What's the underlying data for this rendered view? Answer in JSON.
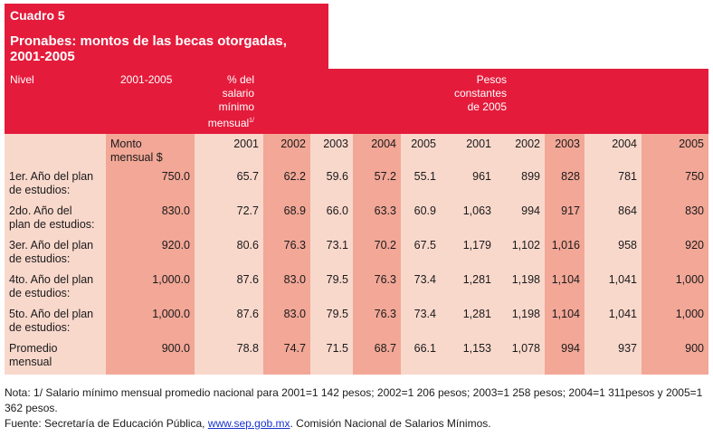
{
  "title": {
    "cuadro": "Cuadro 5",
    "heading": "Pronabes: montos de las becas otorgadas,\n2001-2005"
  },
  "header": {
    "nivel": "Nivel",
    "period": "2001-2005",
    "pct": "% del\nsalario\nmínimo\nmensual",
    "pct_note": "1/",
    "pesos": "Pesos\nconstantes\nde 2005"
  },
  "subheader": {
    "monto": "Monto\nmensual $",
    "years_pct": [
      "2001",
      "2002",
      "2003",
      "2004",
      "2005"
    ],
    "years_pesos": [
      "2001",
      "2002",
      "2003",
      "2004",
      "2005"
    ]
  },
  "rows": [
    {
      "label": "1er. Año del plan\nde estudios:",
      "monto": "750.0",
      "pct": [
        "65.7",
        "62.2",
        "59.6",
        "57.2",
        "55.1"
      ],
      "pesos": [
        "961",
        "899",
        "828",
        "781",
        "750"
      ]
    },
    {
      "label": "2do. Año del\nplan de estudios:",
      "monto": "830.0",
      "pct": [
        "72.7",
        "68.9",
        "66.0",
        "63.3",
        "60.9"
      ],
      "pesos": [
        "1,063",
        "994",
        "917",
        "864",
        "830"
      ]
    },
    {
      "label": "3er. Año del plan\nde estudios:",
      "monto": "920.0",
      "pct": [
        "80.6",
        "76.3",
        "73.1",
        "70.2",
        "67.5"
      ],
      "pesos": [
        "1,179",
        "1,102",
        "1,016",
        "958",
        "920"
      ]
    },
    {
      "label": "4to. Año del plan\nde estudios:",
      "monto": "1,000.0",
      "pct": [
        "87.6",
        "83.0",
        "79.5",
        "76.3",
        "73.4"
      ],
      "pesos": [
        "1,281",
        "1,198",
        "1,104",
        "1,041",
        "1,000"
      ]
    },
    {
      "label": "5to. Año del plan\nde estudios:",
      "monto": "1,000.0",
      "pct": [
        "87.6",
        "83.0",
        "79.5",
        "76.3",
        "73.4"
      ],
      "pesos": [
        "1,281",
        "1,198",
        "1,104",
        "1,041",
        "1,000"
      ]
    },
    {
      "label": "Promedio\nmensual",
      "monto": "900.0",
      "pct": [
        "78.8",
        "74.7",
        "71.5",
        "68.7",
        "66.1"
      ],
      "pesos": [
        "1,153",
        "1,078",
        "994",
        "937",
        "900"
      ]
    }
  ],
  "notes": {
    "nota": "Nota: 1/ Salario mínimo mensual promedio nacional para 2001=1 142 pesos; 2002=1 206 pesos; 2003=1 258 pesos; 2004=1 311pesos y 2005=1 362 pesos.",
    "fuente_prefix": "Fuente: Secretaría de Educación Pública, ",
    "fuente_link": "www.sep.gob.mx",
    "fuente_suffix": ". Comisión Nacional de Salarios Mínimos."
  }
}
